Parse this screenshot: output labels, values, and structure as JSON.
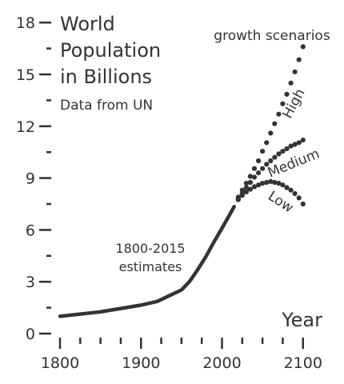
{
  "chart_data": {
    "type": "line",
    "title_lines": [
      "World",
      "Population",
      "in Billions"
    ],
    "subtitle": "Data from UN",
    "xlabel": "Year",
    "ylabel": "",
    "xlim": [
      1790,
      2110
    ],
    "ylim": [
      0,
      18
    ],
    "x_ticks": [
      1800,
      1900,
      2000,
      2100
    ],
    "x_minor_step": 25,
    "y_ticks": [
      0,
      3,
      6,
      9,
      12,
      15,
      18
    ],
    "y_minor_step": 1.5,
    "grid": false,
    "legend": "none",
    "estimates_label_lines": [
      "1800-2015",
      "estimates"
    ],
    "scenarios_header": "growth scenarios",
    "series": [
      {
        "name": "1800-2015 estimates",
        "style": "solid",
        "x": [
          1800,
          1850,
          1900,
          1920,
          1950,
          1960,
          1970,
          1980,
          1990,
          2000,
          2010,
          2015
        ],
        "y": [
          1.0,
          1.26,
          1.65,
          1.86,
          2.53,
          3.02,
          3.7,
          4.45,
          5.3,
          6.1,
          6.92,
          7.35
        ]
      },
      {
        "name": "High",
        "style": "dotted",
        "x": [
          2020,
          2025,
          2030,
          2035,
          2040,
          2045,
          2050,
          2055,
          2060,
          2065,
          2070,
          2075,
          2080,
          2085,
          2090,
          2095,
          2100
        ],
        "y": [
          7.9,
          8.3,
          8.7,
          9.1,
          9.55,
          10.0,
          10.55,
          11.05,
          11.6,
          12.15,
          12.7,
          13.3,
          13.85,
          14.5,
          15.15,
          15.85,
          16.6
        ]
      },
      {
        "name": "Medium",
        "style": "dotted",
        "x": [
          2020,
          2025,
          2030,
          2035,
          2040,
          2045,
          2050,
          2055,
          2060,
          2065,
          2070,
          2075,
          2080,
          2085,
          2090,
          2095,
          2100
        ],
        "y": [
          7.8,
          8.1,
          8.45,
          8.75,
          9.05,
          9.3,
          9.55,
          9.8,
          10.0,
          10.2,
          10.4,
          10.55,
          10.7,
          10.85,
          10.95,
          11.05,
          11.2
        ]
      },
      {
        "name": "Low",
        "style": "dotted",
        "x": [
          2020,
          2025,
          2030,
          2035,
          2040,
          2045,
          2050,
          2055,
          2060,
          2065,
          2070,
          2075,
          2080,
          2085,
          2090,
          2095,
          2100
        ],
        "y": [
          7.75,
          8.0,
          8.2,
          8.35,
          8.5,
          8.6,
          8.7,
          8.75,
          8.8,
          8.75,
          8.7,
          8.6,
          8.45,
          8.3,
          8.1,
          7.85,
          7.5
        ]
      }
    ],
    "colors": {
      "ink": "#333333",
      "background": "#ffffff"
    }
  }
}
